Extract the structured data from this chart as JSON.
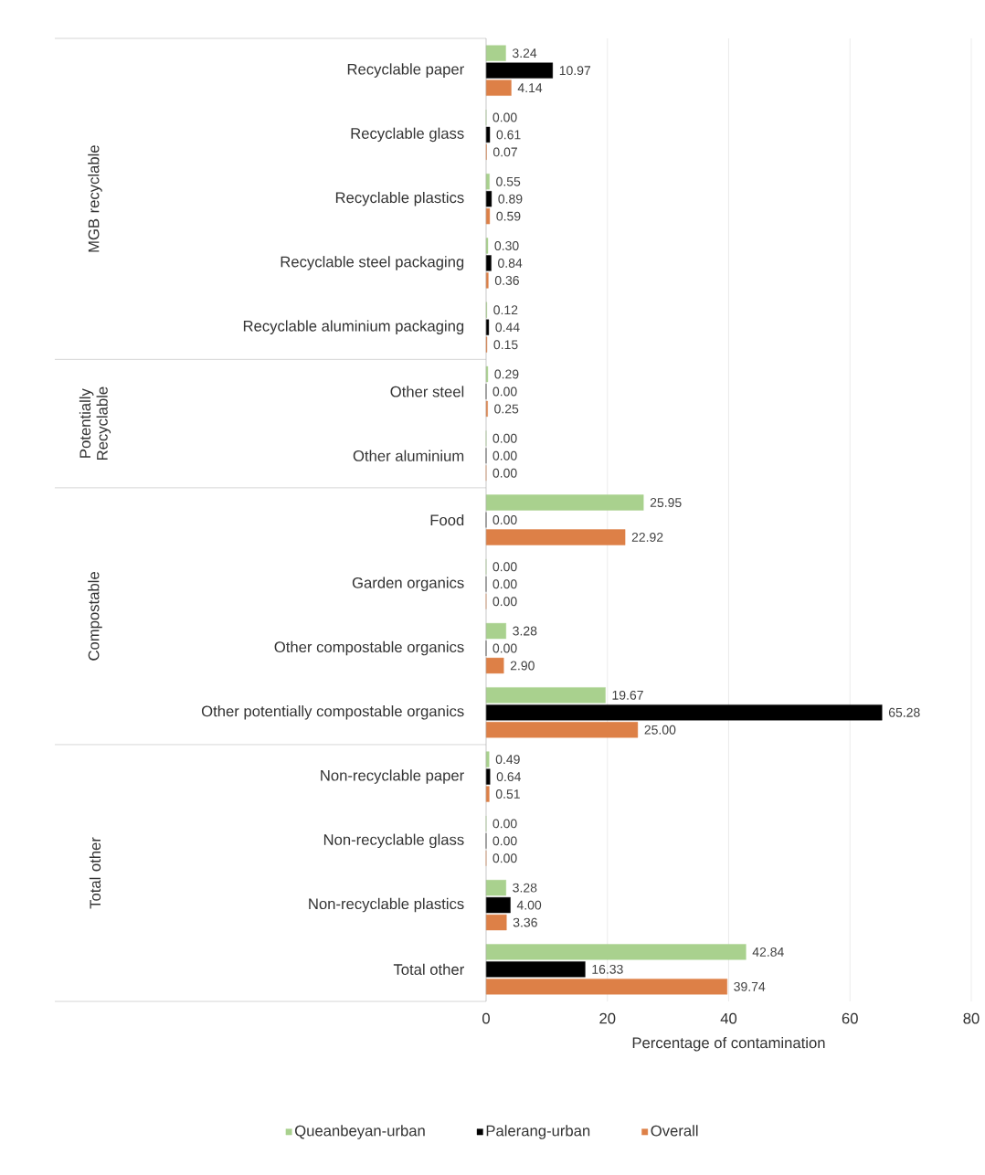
{
  "chart_data": {
    "type": "bar",
    "orientation": "horizontal",
    "xlabel": "Percentage of contamination",
    "categories": [
      "Recyclable paper",
      "Recyclable glass",
      "Recyclable plastics",
      "Recyclable steel packaging",
      "Recyclable aluminium packaging",
      "Other steel",
      "Other aluminium",
      "Food",
      "Garden organics",
      "Other compostable organics",
      "Other potentially compostable organics",
      "Non-recyclable paper",
      "Non-recyclable glass",
      "Non-recyclable plastics",
      "Total other"
    ],
    "series": [
      {
        "name": "Queanbeyan-urban",
        "color": "#a9d18e",
        "values": [
          3.24,
          0.0,
          0.55,
          0.3,
          0.12,
          0.29,
          0.0,
          25.95,
          0.0,
          3.28,
          19.67,
          0.49,
          0.0,
          3.28,
          42.84
        ],
        "value_labels": [
          "3.24",
          "0.00",
          "0.55",
          "0.30",
          "0.12",
          "0.29",
          "0.00",
          "25.95",
          "0.00",
          "3.28",
          "19.67",
          "0.49",
          "0.00",
          "3.28",
          "42.84"
        ]
      },
      {
        "name": "Palerang-urban",
        "color": "#000000",
        "values": [
          10.97,
          0.61,
          0.89,
          0.84,
          0.44,
          0.0,
          0.0,
          0.0,
          0.0,
          0.0,
          65.28,
          0.64,
          0.0,
          4.0,
          16.33
        ],
        "value_labels": [
          "10.97",
          "0.61",
          "0.89",
          "0.84",
          "0.44",
          "0.00",
          "0.00",
          "0.00",
          "0.00",
          "0.00",
          "65.28",
          "0.64",
          "0.00",
          "4.00",
          "16.33"
        ]
      },
      {
        "name": "Overall",
        "color": "#dd8047",
        "values": [
          4.14,
          0.07,
          0.59,
          0.36,
          0.15,
          0.25,
          0.0,
          22.92,
          0.0,
          2.9,
          25.0,
          0.51,
          0.0,
          3.36,
          39.74
        ],
        "value_labels": [
          "4.14",
          "0.07",
          "0.59",
          "0.36",
          "0.15",
          "0.25",
          "0.00",
          "22.92",
          "0.00",
          "2.90",
          "25.00",
          "0.51",
          "0.00",
          "3.36",
          "39.74"
        ]
      }
    ],
    "annotations": [
      "MGB recyclable",
      "Potentially Recyclable",
      "Compostable",
      "Total other"
    ],
    "xlim": [
      0,
      80
    ],
    "xticks": [
      0,
      20,
      40,
      60,
      80
    ],
    "grid": "x",
    "legend": "bottom"
  }
}
